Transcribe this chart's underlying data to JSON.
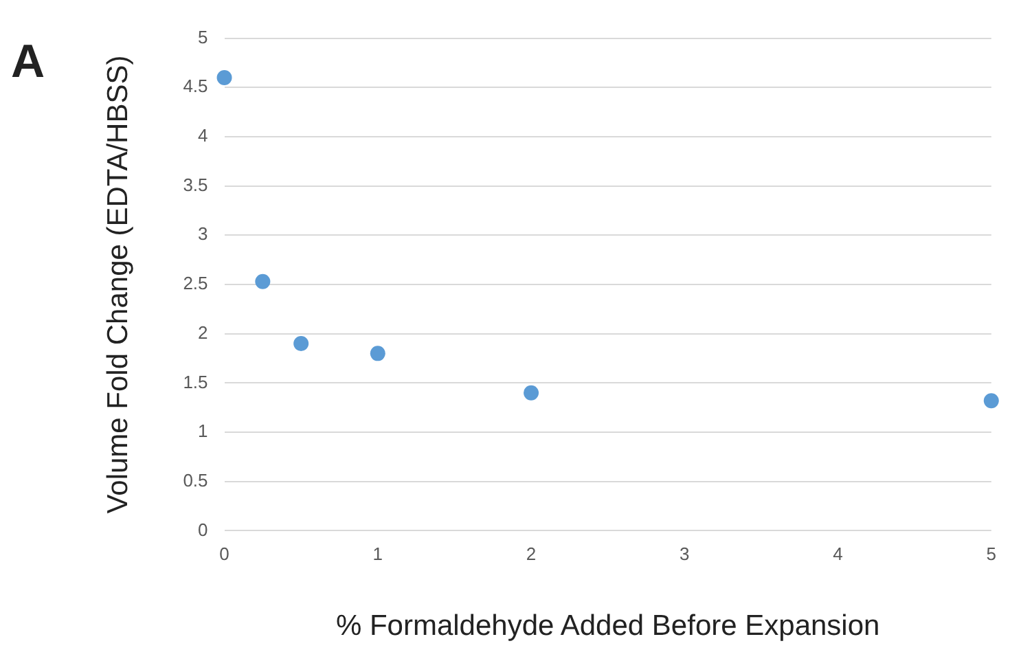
{
  "chart_data": {
    "type": "scatter",
    "xlabel": "% Formaldehyde Added Before Expansion",
    "ylabel": "Volume Fold Change (EDTA/HBSS)",
    "annotations": [
      "A"
    ],
    "x": [
      0,
      0.25,
      0.5,
      1,
      2,
      5
    ],
    "series": [
      {
        "color": "#5b9bd5",
        "values": [
          4.6,
          2.53,
          1.9,
          1.8,
          1.4,
          1.32
        ]
      }
    ],
    "xlim": [
      0,
      5
    ],
    "xticks": [
      0,
      1,
      2,
      3,
      4,
      5
    ],
    "ylim": [
      0,
      5
    ],
    "yticks": [
      0,
      0.5,
      1,
      1.5,
      2,
      2.5,
      3,
      3.5,
      4,
      4.5,
      5
    ],
    "grid": "y",
    "legend": false,
    "marker": "circle"
  }
}
